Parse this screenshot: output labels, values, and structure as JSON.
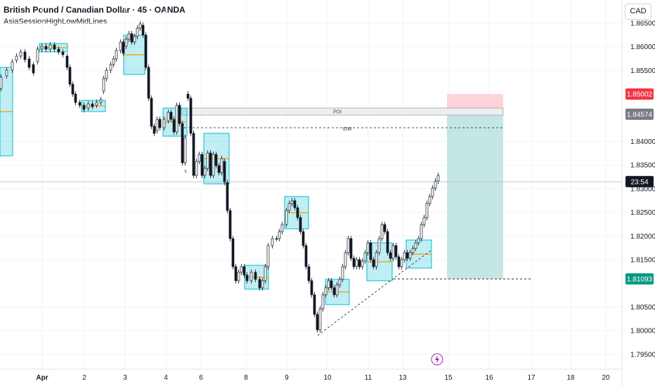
{
  "header": {
    "title": "British Pound / Canadian Dollar · 45 · OANDA",
    "indicator": "AsiaSessionHighLowMidLines",
    "currency": "CAD"
  },
  "chart_data": {
    "type": "candlestick",
    "y_ticks": [
      "1.86500",
      "1.86000",
      "1.85500",
      "1.84000",
      "1.83500",
      "1.83000",
      "1.82500",
      "1.82000",
      "1.81500",
      "1.80500",
      "1.80000",
      "1.79500"
    ],
    "x_ticks": [
      "Apr",
      "2",
      "3",
      "4",
      "6",
      "8",
      "9",
      "10",
      "11",
      "13",
      "15",
      "16",
      "17",
      "18",
      "20"
    ],
    "ylim": [
      1.7948,
      1.8677
    ],
    "close_approx": [
      1.812,
      1.816,
      1.814,
      1.817,
      1.82,
      1.8175,
      1.8195,
      1.821,
      1.819,
      1.822,
      1.8245,
      1.82,
      1.828,
      1.832,
      1.833
    ],
    "price_tags": [
      {
        "label": "1.85002",
        "value": 1.85002,
        "color": "#f23645"
      },
      {
        "label": "1.84574",
        "value": 1.84574,
        "color": "#787b86"
      },
      {
        "label": "23:54",
        "value": 1.8315,
        "color": "#131722"
      },
      {
        "label": "1.81093",
        "value": 1.81093,
        "color": "#089981"
      }
    ],
    "annotations": {
      "poi_label": "POI",
      "idm_label": "IDM",
      "x_marker": "x"
    },
    "position": {
      "type": "short",
      "entry": 1.84574,
      "stop": 1.85002,
      "target": 1.81093
    },
    "colors": {
      "up": "#089981",
      "down": "#131722",
      "session_box": "#00bcd4",
      "mid_line": "#ff9800",
      "stop_zone": "#ffcdd2",
      "target_zone": "#b2dfdb"
    }
  },
  "footer": {
    "alert_icon": "lightning-icon"
  }
}
